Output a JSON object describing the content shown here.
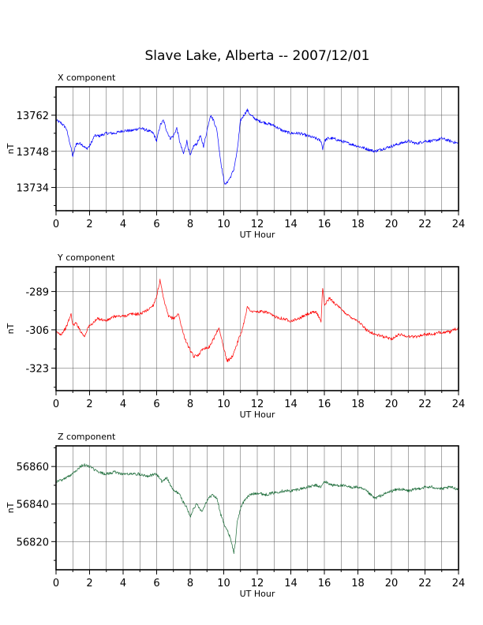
{
  "title": "Slave Lake, Alberta -- 2007/12/01",
  "chart_data": [
    {
      "type": "line",
      "title": "X component",
      "xlabel": "UT Hour",
      "ylabel": "nT",
      "xlim": [
        0,
        24
      ],
      "ylim": [
        13725,
        13773
      ],
      "xticks": [
        0,
        2,
        4,
        6,
        8,
        10,
        12,
        14,
        16,
        18,
        20,
        22,
        24
      ],
      "yticks": [
        13734,
        13748,
        13762
      ],
      "grid": true,
      "color": "#0000ff",
      "series": [
        {
          "x": [
            0,
            0.3,
            0.6,
            0.8,
            1.0,
            1.2,
            1.5,
            1.8,
            2.0,
            2.3,
            2.6,
            3.0,
            3.5,
            4.0,
            4.5,
            5.0,
            5.5,
            5.8,
            6.0,
            6.2,
            6.4,
            6.6,
            6.8,
            7.0,
            7.2,
            7.4,
            7.6,
            7.8,
            8.0,
            8.2,
            8.4,
            8.6,
            8.8,
            9.0,
            9.2,
            9.4,
            9.6,
            9.8,
            10.0,
            10.1,
            10.2,
            10.4,
            10.6,
            10.8,
            11.0,
            11.2,
            11.4,
            11.6,
            12.0,
            12.5,
            13.0,
            13.5,
            14.0,
            14.5,
            15.0,
            15.5,
            15.8,
            15.9,
            16.0,
            16.2,
            16.5,
            17.0,
            17.5,
            18.0,
            18.5,
            19.0,
            19.5,
            20.0,
            20.5,
            21.0,
            21.5,
            22.0,
            22.5,
            23.0,
            23.5,
            24.0
          ],
          "values": [
            13760,
            13759,
            13757,
            13752,
            13746,
            13751,
            13751,
            13749,
            13750,
            13754,
            13754,
            13755,
            13755,
            13756,
            13756,
            13757,
            13756,
            13755,
            13752,
            13758,
            13760,
            13756,
            13753,
            13754,
            13757,
            13751,
            13747,
            13752,
            13746,
            13750,
            13751,
            13754,
            13750,
            13756,
            13762,
            13760,
            13756,
            13745,
            13737,
            13735,
            13736,
            13738,
            13741,
            13748,
            13760,
            13762,
            13764,
            13762,
            13760,
            13759,
            13758,
            13756,
            13755,
            13755,
            13754,
            13753,
            13752,
            13749,
            13752,
            13753,
            13753,
            13752,
            13751,
            13750,
            13749,
            13748,
            13749,
            13750,
            13751,
            13752,
            13751,
            13752,
            13752,
            13753,
            13752,
            13751
          ]
        }
      ]
    },
    {
      "type": "line",
      "title": "Y component",
      "xlabel": "UT Hour",
      "ylabel": "nT",
      "xlim": [
        0,
        24
      ],
      "ylim": [
        -333,
        -278
      ],
      "xticks": [
        0,
        2,
        4,
        6,
        8,
        10,
        12,
        14,
        16,
        18,
        20,
        22,
        24
      ],
      "yticks": [
        -289,
        -306,
        -323
      ],
      "grid": true,
      "color": "#ff0000",
      "series": [
        {
          "x": [
            0,
            0.3,
            0.6,
            0.9,
            1.0,
            1.2,
            1.5,
            1.7,
            1.9,
            2.2,
            2.5,
            3.0,
            3.5,
            4.0,
            4.5,
            5.0,
            5.5,
            5.8,
            6.0,
            6.2,
            6.4,
            6.7,
            7.0,
            7.3,
            7.6,
            7.8,
            8.0,
            8.2,
            8.5,
            8.8,
            9.1,
            9.4,
            9.7,
            10.0,
            10.2,
            10.5,
            10.8,
            11.1,
            11.4,
            11.7,
            12.0,
            12.5,
            13.0,
            13.5,
            14.0,
            14.5,
            15.0,
            15.5,
            15.8,
            15.9,
            16.0,
            16.3,
            16.6,
            17.0,
            17.5,
            18.0,
            18.5,
            19.0,
            19.5,
            20.0,
            20.5,
            21.0,
            21.5,
            22.0,
            22.5,
            23.0,
            23.5,
            24.0
          ],
          "values": [
            -307,
            -308,
            -305,
            -299,
            -304,
            -303,
            -307,
            -309,
            -305,
            -303,
            -301,
            -302,
            -300,
            -300,
            -299,
            -299,
            -297,
            -295,
            -291,
            -284,
            -292,
            -300,
            -301,
            -299,
            -308,
            -312,
            -315,
            -318,
            -317,
            -314,
            -314,
            -310,
            -305,
            -314,
            -320,
            -318,
            -312,
            -306,
            -296,
            -298,
            -298,
            -298,
            -300,
            -301,
            -302,
            -301,
            -299,
            -298,
            -302,
            -287,
            -295,
            -292,
            -294,
            -297,
            -300,
            -302,
            -306,
            -308,
            -309,
            -310,
            -308,
            -309,
            -309,
            -308,
            -308,
            -307,
            -307,
            -305
          ]
        }
      ]
    },
    {
      "type": "line",
      "title": "Z component",
      "xlabel": "UT Hour",
      "ylabel": "nT",
      "xlim": [
        0,
        24
      ],
      "ylim": [
        56805,
        56871
      ],
      "xticks": [
        0,
        2,
        4,
        6,
        8,
        10,
        12,
        14,
        16,
        18,
        20,
        22,
        24
      ],
      "yticks": [
        56820,
        56840,
        56860
      ],
      "grid": true,
      "color": "#1b6b38",
      "series": [
        {
          "x": [
            0,
            0.4,
            0.8,
            1.2,
            1.6,
            2.0,
            2.5,
            3.0,
            3.5,
            4.0,
            4.5,
            5.0,
            5.5,
            6.0,
            6.3,
            6.6,
            7.0,
            7.3,
            7.6,
            7.8,
            8.0,
            8.2,
            8.4,
            8.7,
            9.0,
            9.3,
            9.6,
            9.8,
            10.0,
            10.2,
            10.4,
            10.6,
            10.7,
            10.8,
            11.0,
            11.3,
            11.6,
            12.0,
            12.5,
            13.0,
            13.5,
            14.0,
            14.5,
            15.0,
            15.5,
            15.8,
            16.0,
            16.5,
            17.0,
            17.5,
            18.0,
            18.5,
            19.0,
            19.5,
            20.0,
            20.5,
            21.0,
            21.5,
            22.0,
            22.5,
            23.0,
            23.5,
            24.0
          ],
          "values": [
            56852,
            56853,
            56855,
            56858,
            56861,
            56860,
            56857,
            56856,
            56857,
            56856,
            56856,
            56856,
            56855,
            56856,
            56852,
            56854,
            56847,
            56846,
            56841,
            56838,
            56833,
            56838,
            56840,
            56836,
            56842,
            56845,
            56843,
            56835,
            56830,
            56826,
            56822,
            56814,
            56820,
            56830,
            56838,
            56843,
            56845,
            56846,
            56845,
            56846,
            56847,
            56847,
            56848,
            56849,
            56850,
            56849,
            56852,
            56850,
            56850,
            56849,
            56849,
            56847,
            56843,
            56845,
            56847,
            56848,
            56847,
            56848,
            56849,
            56849,
            56848,
            56849,
            56848
          ]
        }
      ]
    }
  ]
}
